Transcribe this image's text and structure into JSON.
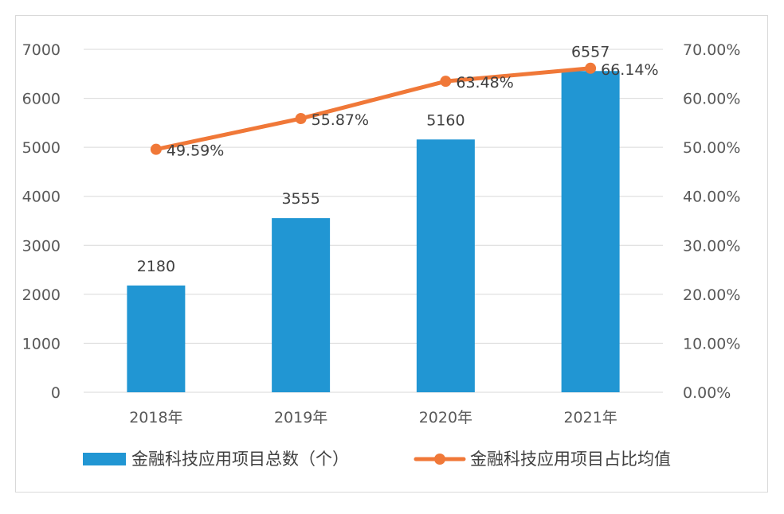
{
  "chart_data": {
    "type": "bar",
    "categories": [
      "2018年",
      "2019年",
      "2020年",
      "2021年"
    ],
    "series": [
      {
        "name": "金融科技应用项目总数（个）",
        "type": "bar",
        "axis": "left",
        "values": [
          2180,
          3555,
          5160,
          6557
        ],
        "labels": [
          "2180",
          "3555",
          "5160",
          "6557"
        ],
        "color": "#2196d3"
      },
      {
        "name": "金融科技应用项目占比均值",
        "type": "line",
        "axis": "right",
        "values": [
          49.59,
          55.87,
          63.48,
          66.14
        ],
        "labels": [
          "49.59%",
          "55.87%",
          "63.48%",
          "66.14%"
        ],
        "color": "#f07838"
      }
    ],
    "y_left": {
      "ylim": [
        0,
        7000
      ],
      "ticks": [
        "0",
        "1000",
        "2000",
        "3000",
        "4000",
        "5000",
        "6000",
        "7000"
      ]
    },
    "y_right": {
      "ylim": [
        0,
        70
      ],
      "ticks": [
        "0.00%",
        "10.00%",
        "20.00%",
        "30.00%",
        "40.00%",
        "50.00%",
        "60.00%",
        "70.00%"
      ]
    },
    "grid": true,
    "legend": "bottom",
    "title": "",
    "xlabel": "",
    "ylabel": ""
  }
}
